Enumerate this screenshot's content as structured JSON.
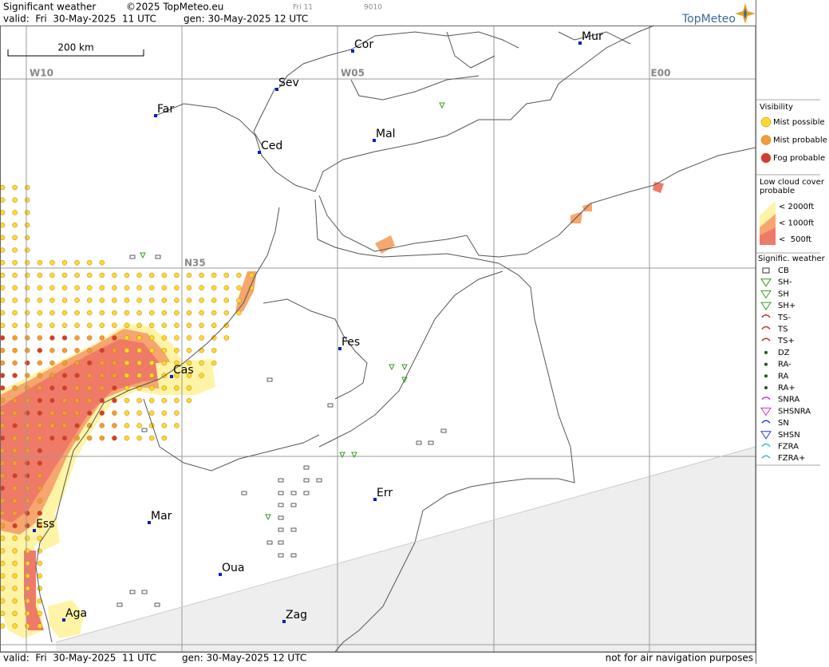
{
  "header": {
    "title": "Significant weather",
    "copyright": "©2025 TopMeteo.eu",
    "run": "Fri 11",
    "code": "9010",
    "valid": "valid:  Fri  30-May-2025  11 UTC",
    "gen": "gen: 30-May-2025 12 UTC",
    "logo": "TopMeteo"
  },
  "scale": "200 km",
  "grid": {
    "lon": [
      "W10",
      "W05",
      "E00"
    ],
    "lat": [
      "N35"
    ]
  },
  "cities": [
    "Cor",
    "Mur",
    "Sev",
    "Far",
    "Ced",
    "Mal",
    "Fes",
    "Cas",
    "Err",
    "Mar",
    "Ess",
    "Oua",
    "Aga",
    "Zag"
  ],
  "footer": {
    "valid": "valid:  Fri  30-May-2025  11 UTC",
    "gen": "gen: 30-May-2025 12 UTC",
    "note": "not for air navigation purposes"
  },
  "legend": {
    "visibility": {
      "title": "Visibility",
      "items": [
        "Mist possible",
        "Mist probable",
        "Fog probable"
      ]
    },
    "low_cloud": {
      "title": "Low cloud cover probable",
      "items": [
        "< 2000ft",
        "< 1000ft",
        "<  500ft"
      ]
    },
    "weather": {
      "title": "Signific. weather",
      "items": [
        "CB",
        "SH-",
        "SH",
        "SH+",
        "TS-",
        "TS",
        "TS+",
        "DZ",
        "RA-",
        "RA",
        "RA+",
        "SNRA",
        "SHSNRA",
        "SN",
        "SHSN",
        "FZRA",
        "FZRA+"
      ]
    }
  }
}
